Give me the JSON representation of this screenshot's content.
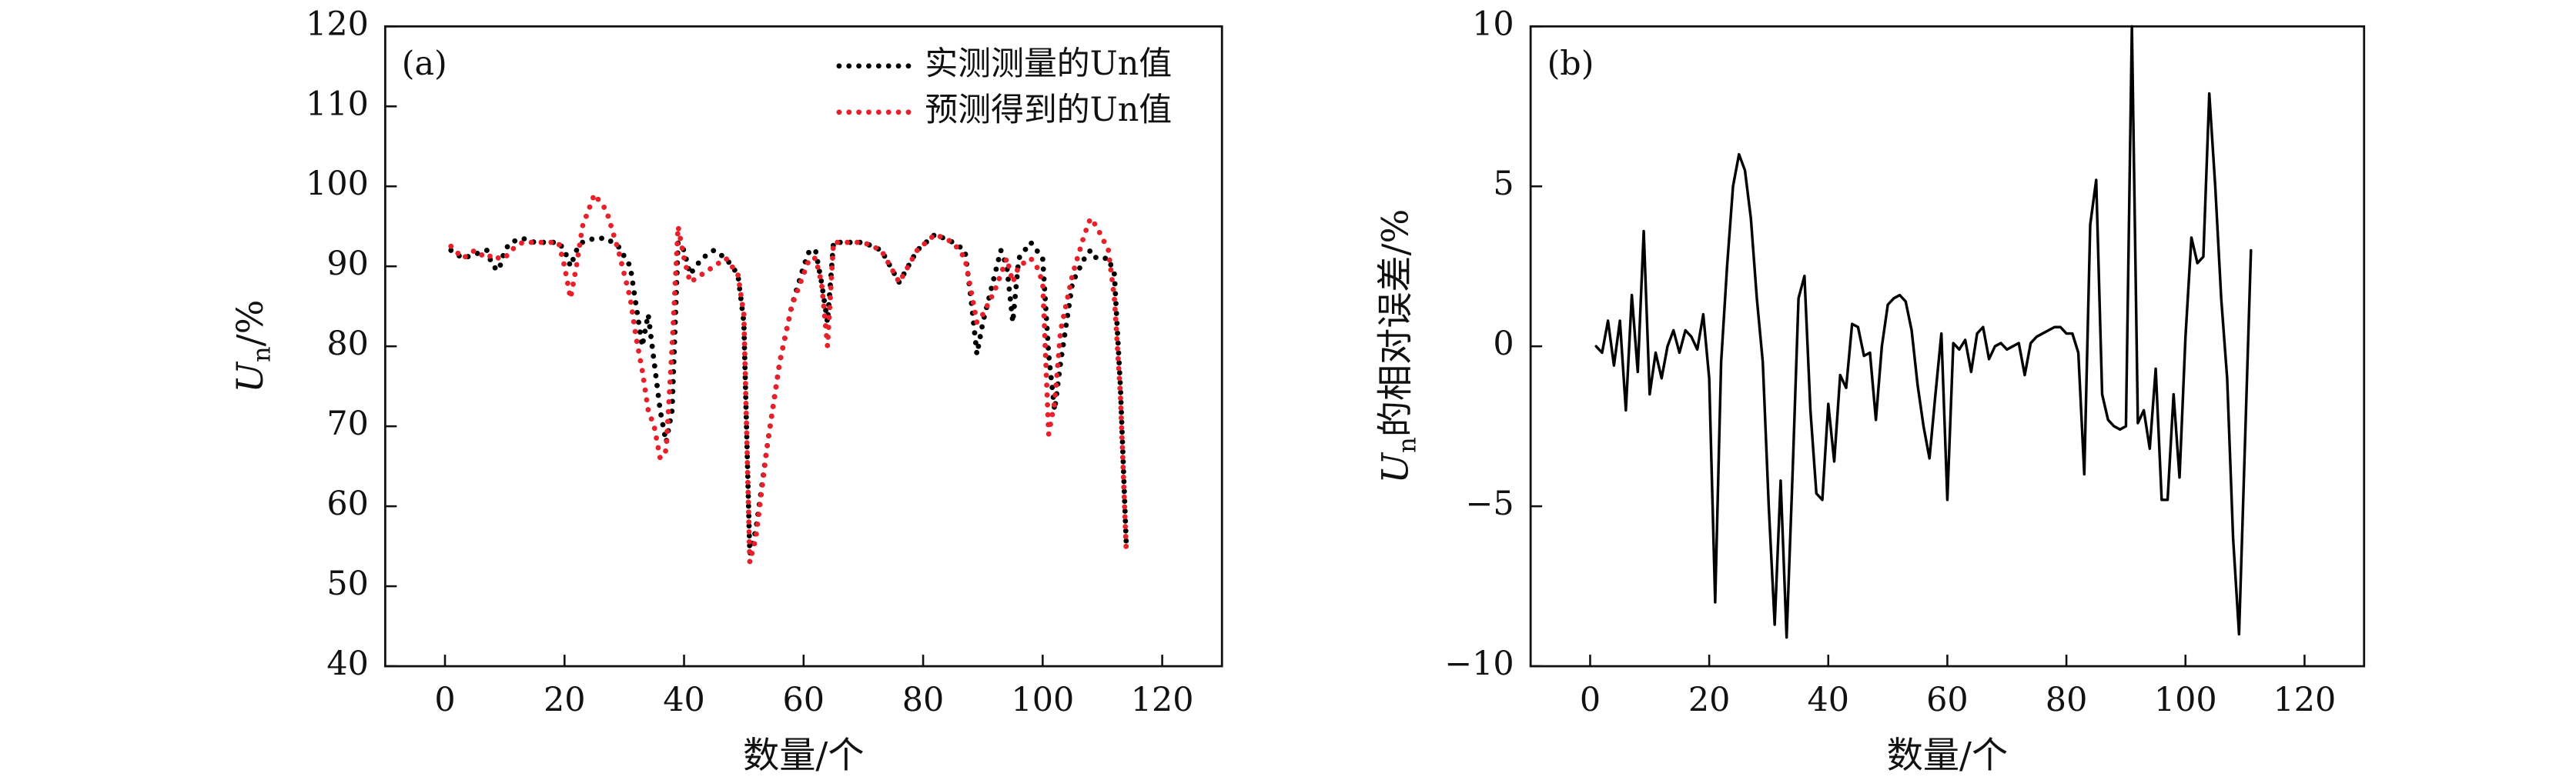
{
  "chart_data": [
    {
      "type": "line",
      "panel_label": "(a)",
      "xlabel": "数量/个",
      "ylabel": {
        "symbol": "U",
        "sub": "n",
        "text": "/%"
      },
      "xlim": [
        -10,
        130
      ],
      "ylim": [
        40,
        120
      ],
      "xticks": [
        0,
        20,
        40,
        60,
        80,
        100,
        120
      ],
      "yticks": [
        40,
        50,
        60,
        70,
        80,
        90,
        100,
        110,
        120
      ],
      "legend": "upper right",
      "x": [
        1,
        3,
        5,
        7,
        8,
        9,
        10,
        11,
        13,
        15,
        17,
        19,
        20,
        21,
        22,
        23,
        25,
        27,
        29,
        31,
        32,
        33,
        34,
        35,
        36,
        37,
        38,
        39,
        40,
        41,
        43,
        45,
        47,
        49,
        50,
        51,
        52,
        54,
        56,
        58,
        60,
        61,
        62,
        63,
        64,
        65,
        67,
        70,
        73,
        76,
        79,
        82,
        85,
        87,
        88,
        89,
        90,
        92,
        93,
        94,
        95,
        96,
        98,
        99,
        100,
        101,
        102,
        103,
        105,
        107,
        108,
        109,
        111,
        112,
        113,
        114
      ],
      "series": [
        {
          "name": "实测测量的Un值",
          "color": "#000000",
          "values": [
            92,
            91,
            91.5,
            92,
            90,
            89.5,
            92,
            93,
            93.5,
            93,
            93,
            93,
            92,
            90,
            92,
            93,
            93.5,
            93.5,
            92.5,
            90,
            85,
            80,
            84,
            78,
            72,
            68,
            72,
            93,
            92,
            89,
            91,
            92,
            91,
            89,
            83,
            54,
            57,
            68,
            78,
            85,
            90,
            92,
            92,
            88,
            83,
            93,
            93,
            93,
            92,
            88,
            92,
            94,
            93,
            92,
            86,
            79,
            83,
            89,
            92,
            90,
            83,
            91,
            93,
            92,
            91,
            79,
            72,
            78,
            88,
            91,
            92,
            91,
            91,
            89,
            75,
            55
          ]
        },
        {
          "name": "预测得到的Un值",
          "color": "#e8202a",
          "values": [
            92.5,
            91,
            92,
            91,
            91.5,
            91,
            91,
            92,
            93,
            93,
            93,
            93,
            90,
            86,
            90,
            95,
            99,
            97,
            92,
            86,
            81,
            77,
            72,
            70,
            66,
            67,
            80,
            95,
            91,
            88,
            89,
            90,
            91,
            89,
            84,
            53,
            56,
            68,
            78,
            85,
            89,
            91,
            91,
            88,
            80,
            93,
            93,
            93,
            92,
            88,
            92,
            94,
            93,
            91,
            87,
            83,
            84,
            87,
            89,
            91,
            88,
            90,
            91,
            90,
            88,
            69,
            73,
            82,
            89,
            94,
            96,
            95,
            92,
            86,
            74,
            54
          ]
        }
      ]
    },
    {
      "type": "line",
      "panel_label": "(b)",
      "xlabel": "数量/个",
      "ylabel": {
        "symbol": "U",
        "sub": "n",
        "text": "的相对误差/%"
      },
      "xlim": [
        -10,
        130
      ],
      "ylim": [
        -10,
        10
      ],
      "xticks": [
        0,
        20,
        40,
        60,
        80,
        100,
        120
      ],
      "yticks": [
        {
          "value": -10,
          "label": "−10"
        },
        {
          "value": -5,
          "label": "−5"
        },
        0,
        5,
        10
      ],
      "x": [
        1,
        2,
        3,
        4,
        5,
        6,
        7,
        8,
        9,
        10,
        11,
        12,
        13,
        14,
        15,
        16,
        17,
        18,
        19,
        20,
        21,
        22,
        23,
        24,
        25,
        26,
        27,
        28,
        29,
        30,
        31,
        32,
        33,
        34,
        35,
        36,
        37,
        38,
        39,
        40,
        41,
        42,
        43,
        44,
        45,
        46,
        47,
        48,
        49,
        50,
        51,
        52,
        53,
        54,
        55,
        56,
        57,
        58,
        59,
        60,
        61,
        62,
        63,
        64,
        65,
        66,
        67,
        68,
        69,
        70,
        71,
        72,
        73,
        74,
        75,
        76,
        77,
        78,
        79,
        80,
        81,
        82,
        83,
        84,
        85,
        86,
        87,
        88,
        89,
        90,
        91,
        92,
        93,
        94,
        95,
        96,
        97,
        98,
        99,
        100,
        101,
        102,
        103,
        104,
        105,
        106,
        107,
        108,
        109,
        110,
        111
      ],
      "series": [
        {
          "color": "#000000",
          "values": [
            0,
            -0.2,
            0.8,
            -0.6,
            0.8,
            -2,
            1.6,
            -0.8,
            3.6,
            -1.5,
            -0.2,
            -1,
            0,
            0.5,
            -0.2,
            0.5,
            0.3,
            -0.1,
            1,
            -1,
            -8,
            -0.5,
            2.5,
            5,
            6,
            5.5,
            4,
            1.5,
            -0.5,
            -5,
            -8.7,
            -4.2,
            -9.1,
            -4,
            1.5,
            2.2,
            -2,
            -4.6,
            -4.8,
            -1.8,
            -3.6,
            -0.9,
            -1.3,
            0.7,
            0.6,
            -0.3,
            -0.2,
            -2.3,
            0,
            1.3,
            1.5,
            1.6,
            1.4,
            0.5,
            -1.2,
            -2.5,
            -3.5,
            -1.5,
            0.4,
            -4.8,
            0.1,
            -0.1,
            0.2,
            -0.8,
            0.4,
            0.6,
            -0.4,
            0,
            0.1,
            -0.1,
            0,
            0.1,
            -0.9,
            0.1,
            0.3,
            0.4,
            0.5,
            0.6,
            0.6,
            0.4,
            0.4,
            -0.2,
            -4,
            3.8,
            5.2,
            -1.5,
            -2.3,
            -2.5,
            -2.6,
            -2.5,
            10,
            -2.4,
            -2,
            -3.2,
            -0.7,
            -4.8,
            -4.8,
            -1.5,
            -4.1,
            0.3,
            3.4,
            2.6,
            2.8,
            7.9,
            5,
            1.5,
            -1,
            -6,
            -9,
            -3,
            3
          ]
        }
      ]
    }
  ]
}
